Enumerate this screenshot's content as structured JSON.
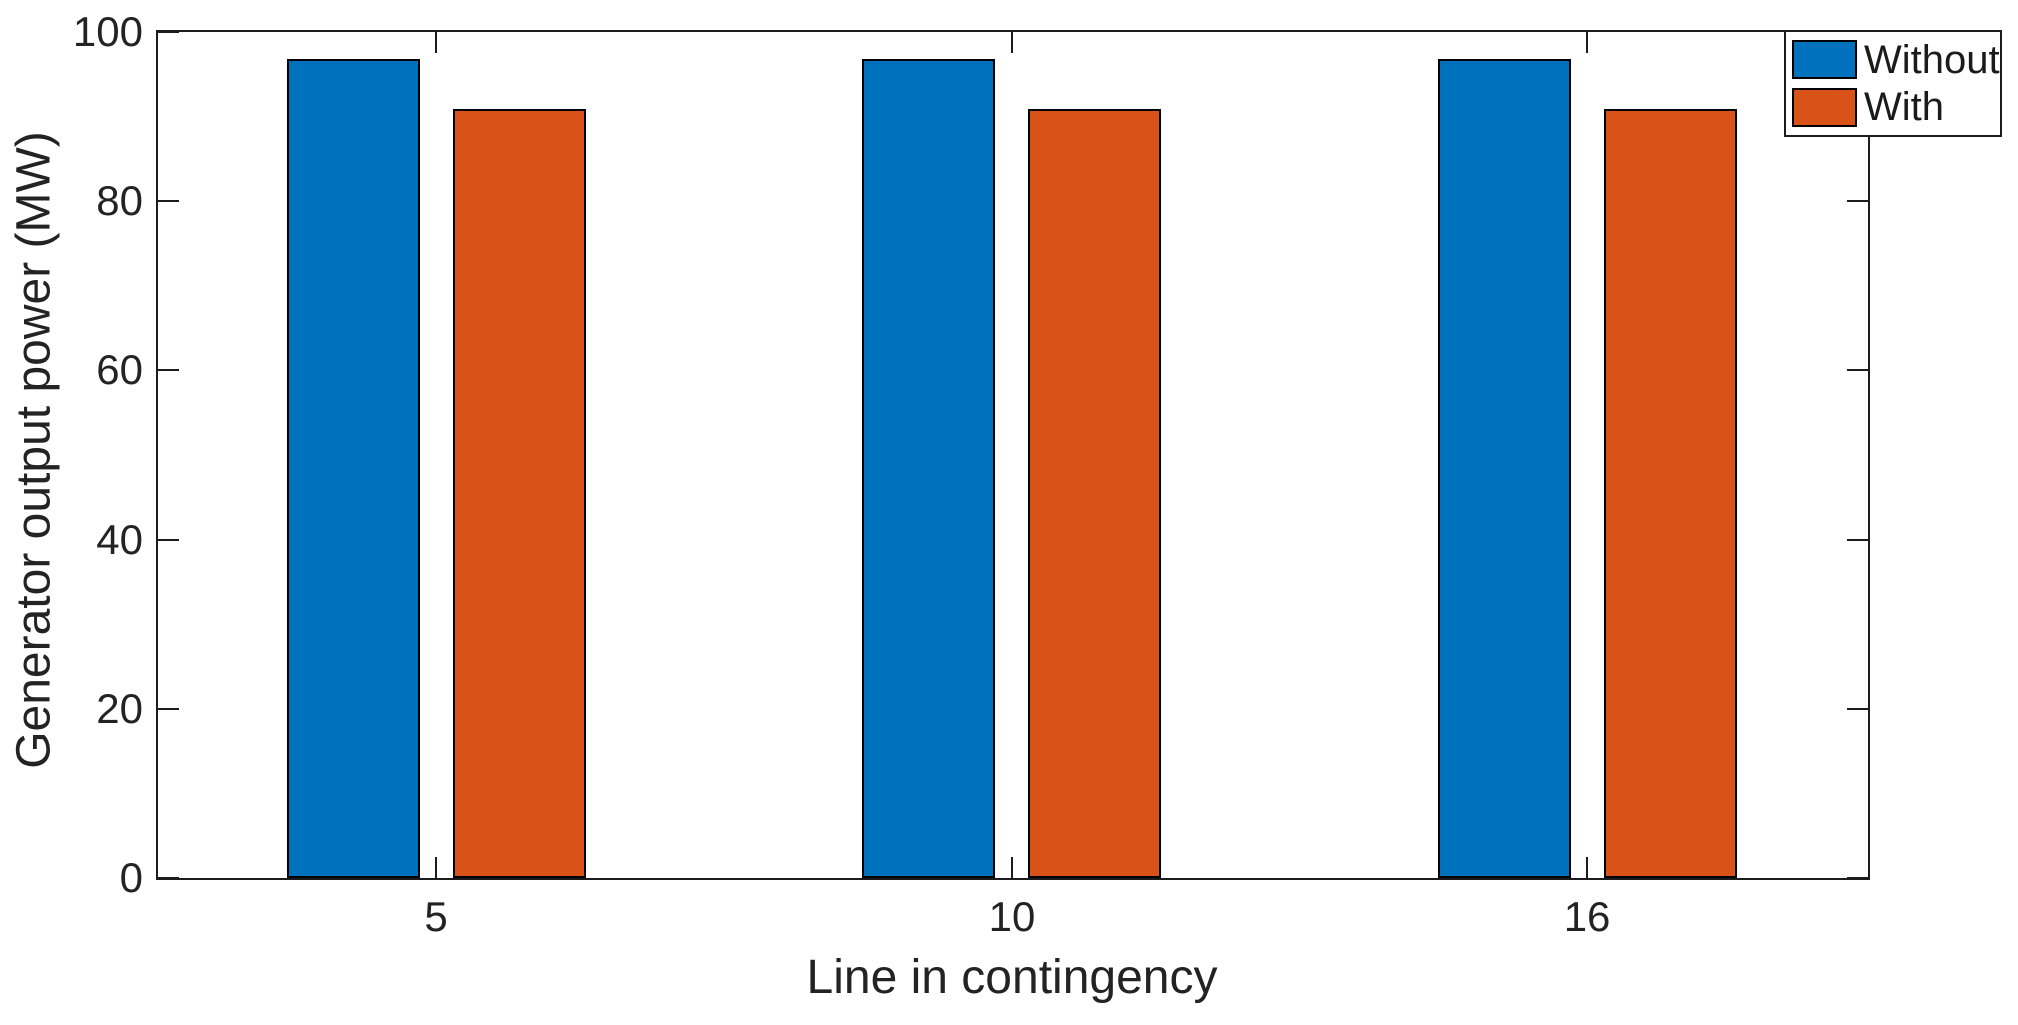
{
  "chart_data": {
    "type": "bar",
    "title": "",
    "xlabel": "Line in contingency",
    "ylabel": "Generator output power (MW)",
    "categories": [
      "5",
      "10",
      "16"
    ],
    "series": [
      {
        "name": "Without",
        "color": "#0072BD",
        "values": [
          96.8,
          96.8,
          96.8
        ]
      },
      {
        "name": "With",
        "color": "#D95319",
        "values": [
          90.9,
          90.9,
          90.9
        ]
      }
    ],
    "ylim": [
      0,
      100
    ],
    "yticks": [
      0,
      20,
      40,
      60,
      80,
      100
    ],
    "grid": false,
    "legend_position": "top-right",
    "legend_entries": [
      "Without",
      "With"
    ],
    "axis_color": "#1c1c1c",
    "bar_edge_color": "#000000",
    "background": "#ffffff"
  }
}
